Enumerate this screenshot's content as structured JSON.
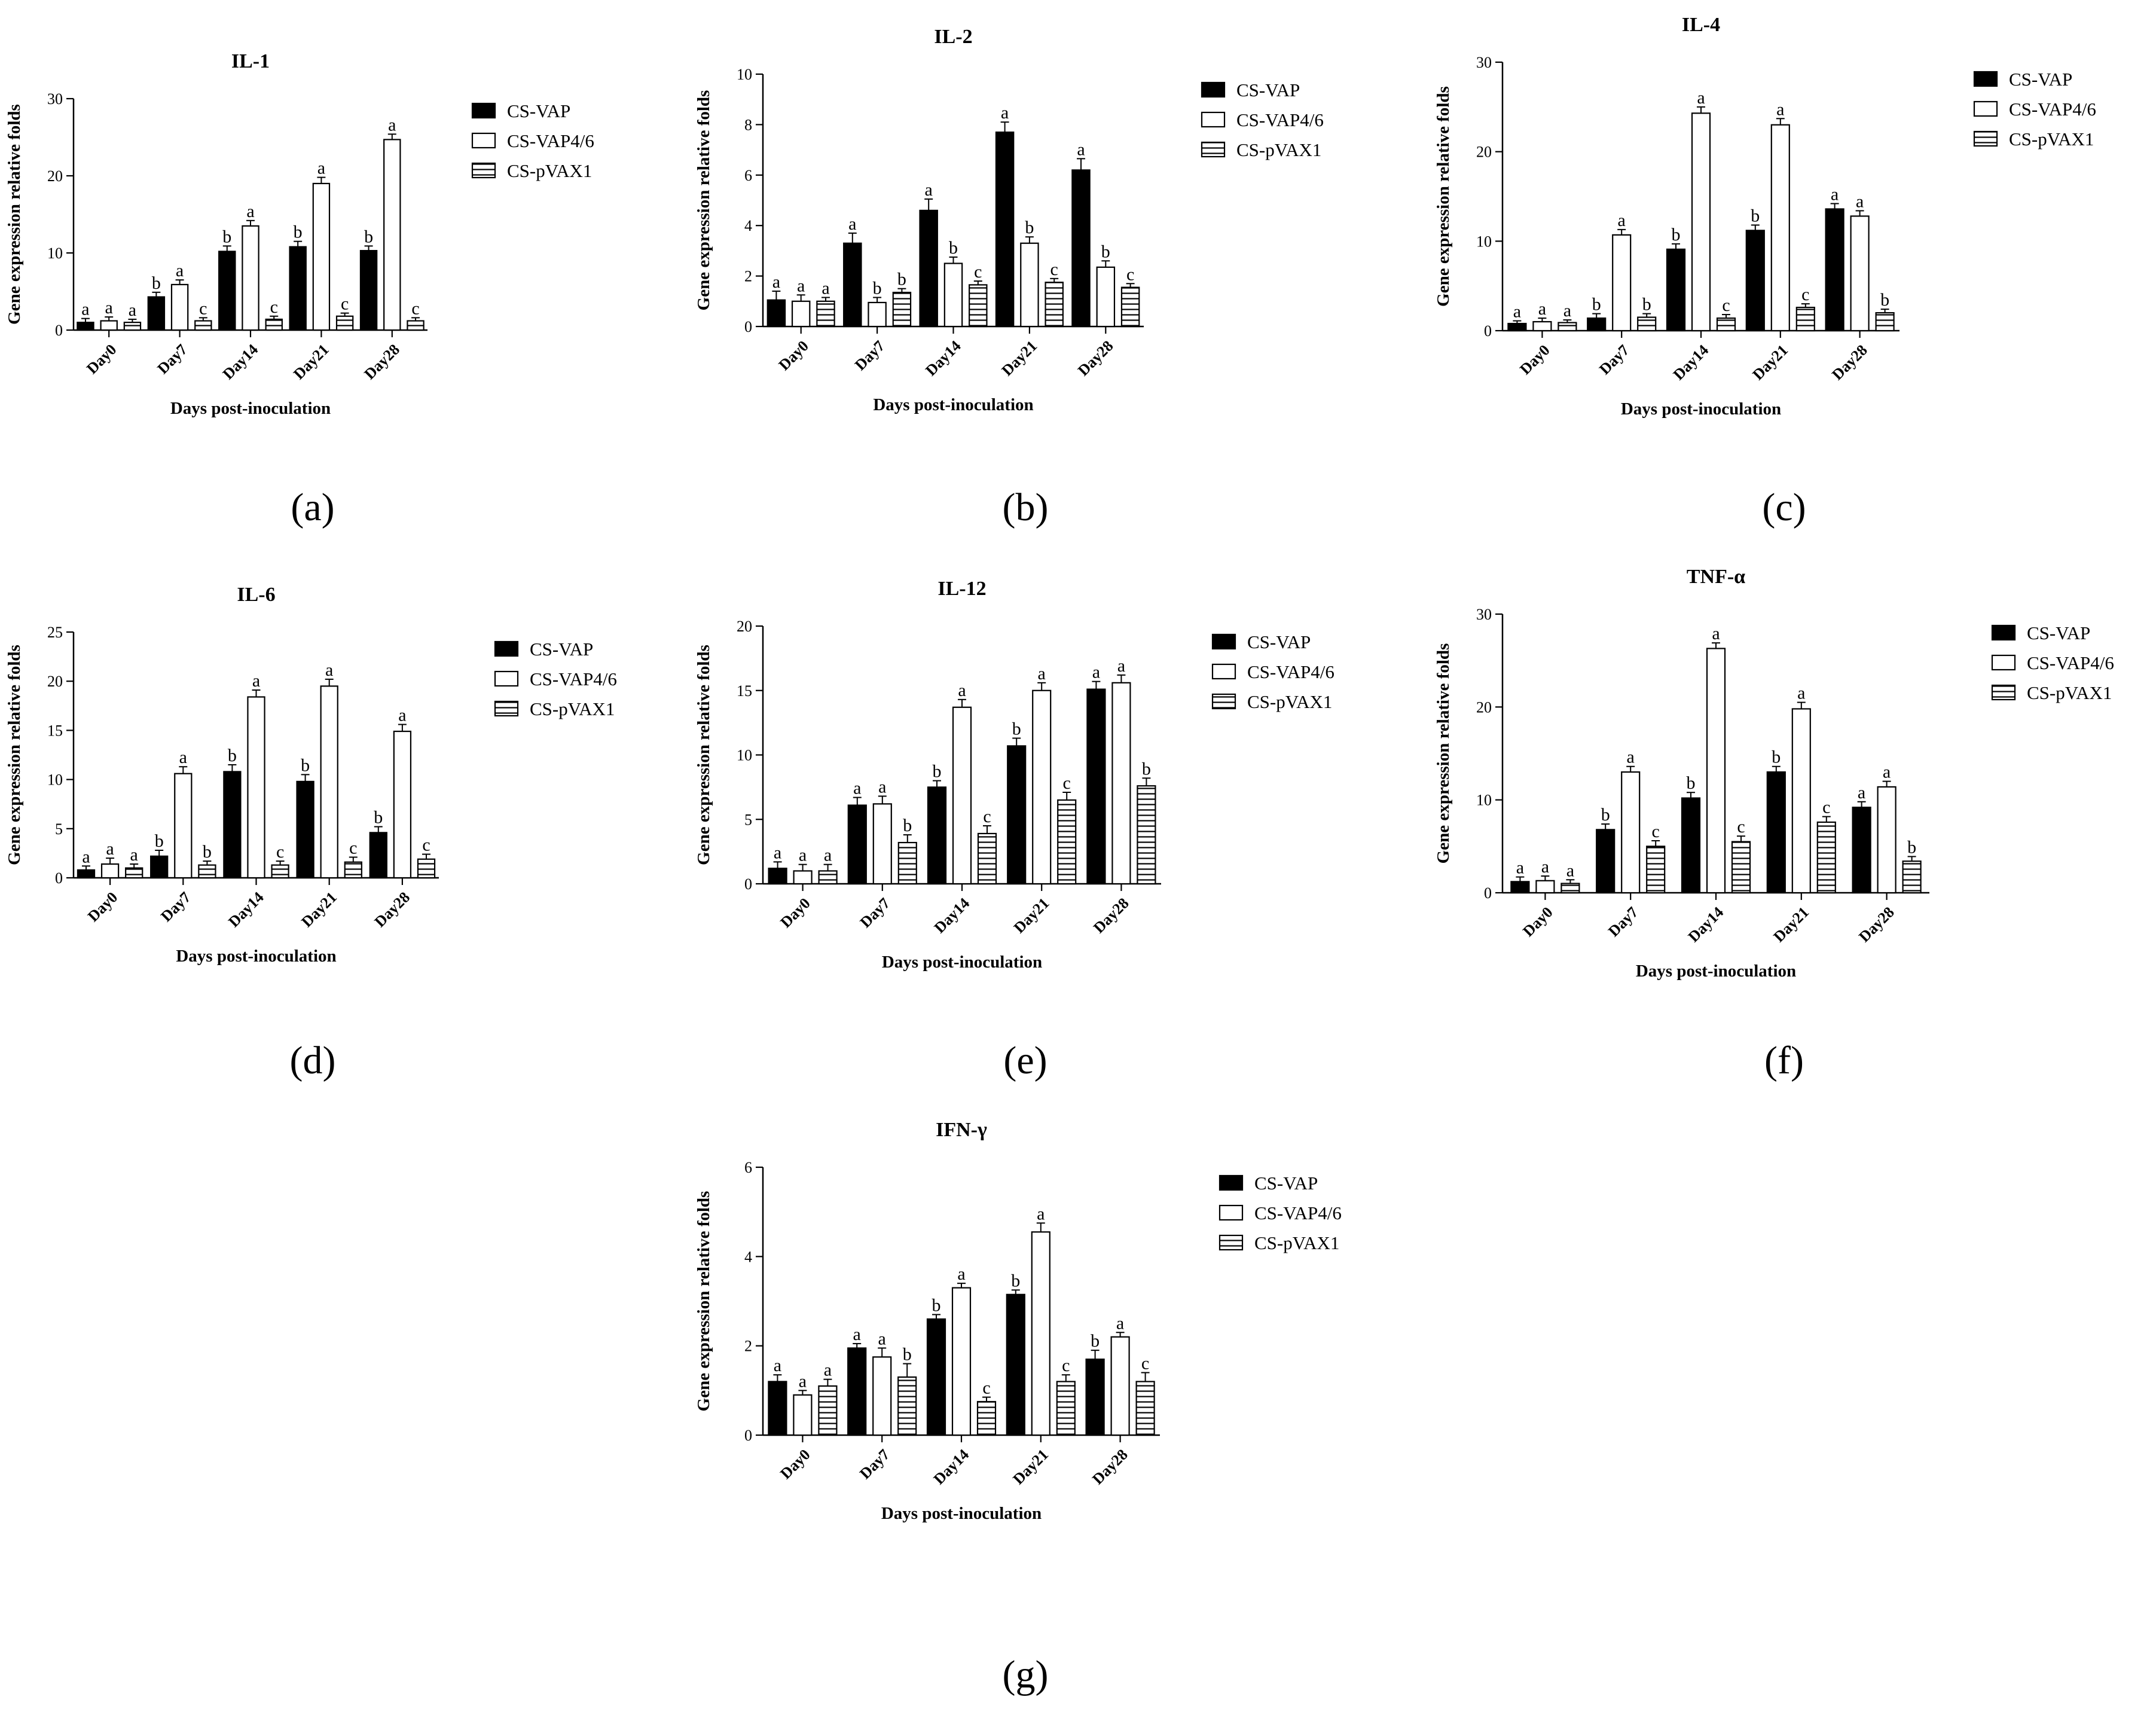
{
  "figure": {
    "legend_entries": [
      "CS-VAP",
      "CS-VAP4/6",
      "CS-pVAX1"
    ],
    "xlabel": "Days post-inoculation",
    "ylabel": "Gene expression relative folds"
  },
  "chart_data": [
    {
      "panel": "a",
      "panel_label": "(a)",
      "type": "bar",
      "title": "IL-1",
      "xlabel": "Days post-inoculation",
      "ylabel": "Gene expression relative folds",
      "categories": [
        "Day0",
        "Day7",
        "Day14",
        "Day21",
        "Day28"
      ],
      "ylim": [
        0,
        30
      ],
      "yticks": [
        0,
        10,
        20,
        30
      ],
      "series": [
        {
          "name": "CS-VAP",
          "fill": "solid",
          "values": [
            1.0,
            4.3,
            10.2,
            10.8,
            10.3
          ],
          "errors": [
            0.5,
            0.6,
            0.7,
            0.7,
            0.6
          ],
          "sig": [
            "a",
            "b",
            "b",
            "b",
            "b"
          ]
        },
        {
          "name": "CS-VAP4/6",
          "fill": "open",
          "values": [
            1.2,
            5.9,
            13.5,
            19.0,
            24.7
          ],
          "errors": [
            0.5,
            0.6,
            0.7,
            0.8,
            0.7
          ],
          "sig": [
            "a",
            "a",
            "a",
            "a",
            "a"
          ]
        },
        {
          "name": "CS-pVAX1",
          "fill": "hatched",
          "values": [
            1.0,
            1.2,
            1.4,
            1.8,
            1.2
          ],
          "errors": [
            0.4,
            0.4,
            0.4,
            0.4,
            0.4
          ],
          "sig": [
            "a",
            "c",
            "c",
            "c",
            "c"
          ]
        }
      ]
    },
    {
      "panel": "b",
      "panel_label": "(b)",
      "type": "bar",
      "title": "IL-2",
      "xlabel": "Days post-inoculation",
      "ylabel": "Gene expression relative folds",
      "categories": [
        "Day0",
        "Day7",
        "Day14",
        "Day21",
        "Day28"
      ],
      "ylim": [
        0,
        10
      ],
      "yticks": [
        0,
        2,
        4,
        6,
        8,
        10
      ],
      "series": [
        {
          "name": "CS-VAP",
          "fill": "solid",
          "values": [
            1.05,
            3.3,
            4.6,
            7.7,
            6.2
          ],
          "errors": [
            0.35,
            0.4,
            0.45,
            0.4,
            0.45
          ],
          "sig": [
            "a",
            "a",
            "a",
            "a",
            "a"
          ]
        },
        {
          "name": "CS-VAP4/6",
          "fill": "open",
          "values": [
            1.0,
            0.95,
            2.5,
            3.3,
            2.35
          ],
          "errors": [
            0.25,
            0.2,
            0.25,
            0.25,
            0.25
          ],
          "sig": [
            "a",
            "b",
            "b",
            "b",
            "b"
          ]
        },
        {
          "name": "CS-pVAX1",
          "fill": "hatched",
          "values": [
            1.0,
            1.35,
            1.65,
            1.75,
            1.55
          ],
          "errors": [
            0.15,
            0.15,
            0.15,
            0.15,
            0.15
          ],
          "sig": [
            "a",
            "b",
            "c",
            "c",
            "c"
          ]
        }
      ]
    },
    {
      "panel": "c",
      "panel_label": "(c)",
      "type": "bar",
      "title": "IL-4",
      "xlabel": "Days post-inoculation",
      "ylabel": "Gene expression relative folds",
      "categories": [
        "Day0",
        "Day7",
        "Day14",
        "Day21",
        "Day28"
      ],
      "ylim": [
        0,
        30
      ],
      "yticks": [
        0,
        10,
        20,
        30
      ],
      "series": [
        {
          "name": "CS-VAP",
          "fill": "solid",
          "values": [
            0.8,
            1.4,
            9.1,
            11.2,
            13.6
          ],
          "errors": [
            0.3,
            0.5,
            0.6,
            0.6,
            0.6
          ],
          "sig": [
            "a",
            "b",
            "b",
            "b",
            "a"
          ]
        },
        {
          "name": "CS-VAP4/6",
          "fill": "open",
          "values": [
            1.0,
            10.7,
            24.3,
            23.0,
            12.8
          ],
          "errors": [
            0.4,
            0.6,
            0.7,
            0.7,
            0.6
          ],
          "sig": [
            "a",
            "a",
            "a",
            "a",
            "a"
          ]
        },
        {
          "name": "CS-pVAX1",
          "fill": "hatched",
          "values": [
            0.9,
            1.5,
            1.4,
            2.6,
            2.0
          ],
          "errors": [
            0.3,
            0.4,
            0.4,
            0.4,
            0.4
          ],
          "sig": [
            "a",
            "b",
            "c",
            "c",
            "b"
          ]
        }
      ]
    },
    {
      "panel": "d",
      "panel_label": "(d)",
      "type": "bar",
      "title": "IL-6",
      "xlabel": "Days post-inoculation",
      "ylabel": "Gene expression relative folds",
      "categories": [
        "Day0",
        "Day7",
        "Day14",
        "Day21",
        "Day28"
      ],
      "ylim": [
        0,
        25
      ],
      "yticks": [
        0,
        5,
        10,
        15,
        20,
        25
      ],
      "series": [
        {
          "name": "CS-VAP",
          "fill": "solid",
          "values": [
            0.8,
            2.2,
            10.8,
            9.8,
            4.6
          ],
          "errors": [
            0.4,
            0.6,
            0.7,
            0.7,
            0.6
          ],
          "sig": [
            "a",
            "b",
            "b",
            "b",
            "b"
          ]
        },
        {
          "name": "CS-VAP4/6",
          "fill": "open",
          "values": [
            1.4,
            10.6,
            18.4,
            19.5,
            14.9
          ],
          "errors": [
            0.6,
            0.7,
            0.7,
            0.7,
            0.7
          ],
          "sig": [
            "a",
            "a",
            "a",
            "a",
            "a"
          ]
        },
        {
          "name": "CS-pVAX1",
          "fill": "hatched",
          "values": [
            1.0,
            1.3,
            1.3,
            1.6,
            1.9
          ],
          "errors": [
            0.4,
            0.4,
            0.4,
            0.5,
            0.5
          ],
          "sig": [
            "a",
            "b",
            "c",
            "c",
            "c"
          ]
        }
      ]
    },
    {
      "panel": "e",
      "panel_label": "(e)",
      "type": "bar",
      "title": "IL-12",
      "xlabel": "Days post-inoculation",
      "ylabel": "Gene expression relative folds",
      "categories": [
        "Day0",
        "Day7",
        "Day14",
        "Day21",
        "Day28"
      ],
      "ylim": [
        0,
        20
      ],
      "yticks": [
        0,
        5,
        10,
        15,
        20
      ],
      "series": [
        {
          "name": "CS-VAP",
          "fill": "solid",
          "values": [
            1.2,
            6.1,
            7.5,
            10.7,
            15.1
          ],
          "errors": [
            0.5,
            0.6,
            0.5,
            0.6,
            0.6
          ],
          "sig": [
            "a",
            "a",
            "b",
            "b",
            "a"
          ]
        },
        {
          "name": "CS-VAP4/6",
          "fill": "open",
          "values": [
            1.0,
            6.2,
            13.7,
            15.0,
            15.6
          ],
          "errors": [
            0.5,
            0.6,
            0.6,
            0.6,
            0.6
          ],
          "sig": [
            "a",
            "a",
            "a",
            "a",
            "a"
          ]
        },
        {
          "name": "CS-pVAX1",
          "fill": "hatched",
          "values": [
            1.0,
            3.2,
            3.9,
            6.5,
            7.6
          ],
          "errors": [
            0.5,
            0.6,
            0.6,
            0.6,
            0.6
          ],
          "sig": [
            "a",
            "b",
            "c",
            "c",
            "b"
          ]
        }
      ]
    },
    {
      "panel": "f",
      "panel_label": "(f)",
      "type": "bar",
      "title": "TNF-α",
      "xlabel": "Days post-inoculation",
      "ylabel": "Gene expression relative folds",
      "categories": [
        "Day0",
        "Day7",
        "Day14",
        "Day21",
        "Day28"
      ],
      "ylim": [
        0,
        30
      ],
      "yticks": [
        0,
        10,
        20,
        30
      ],
      "series": [
        {
          "name": "CS-VAP",
          "fill": "solid",
          "values": [
            1.2,
            6.8,
            10.2,
            13.0,
            9.2
          ],
          "errors": [
            0.5,
            0.6,
            0.6,
            0.6,
            0.6
          ],
          "sig": [
            "a",
            "b",
            "b",
            "b",
            "a"
          ]
        },
        {
          "name": "CS-VAP4/6",
          "fill": "open",
          "values": [
            1.3,
            13.0,
            26.3,
            19.8,
            11.4
          ],
          "errors": [
            0.5,
            0.6,
            0.6,
            0.7,
            0.6
          ],
          "sig": [
            "a",
            "a",
            "a",
            "a",
            "a"
          ]
        },
        {
          "name": "CS-pVAX1",
          "fill": "hatched",
          "values": [
            1.0,
            5.0,
            5.5,
            7.6,
            3.4
          ],
          "errors": [
            0.4,
            0.6,
            0.6,
            0.6,
            0.5
          ],
          "sig": [
            "a",
            "c",
            "c",
            "c",
            "b"
          ]
        }
      ]
    },
    {
      "panel": "g",
      "panel_label": "(g)",
      "type": "bar",
      "title": "IFN-γ",
      "xlabel": "Days post-inoculation",
      "ylabel": "Gene expression relative folds",
      "categories": [
        "Day0",
        "Day7",
        "Day14",
        "Day21",
        "Day28"
      ],
      "ylim": [
        0,
        6
      ],
      "yticks": [
        0,
        2,
        4,
        6
      ],
      "series": [
        {
          "name": "CS-VAP",
          "fill": "solid",
          "values": [
            1.2,
            1.95,
            2.6,
            3.15,
            1.7
          ],
          "errors": [
            0.15,
            0.1,
            0.1,
            0.1,
            0.2
          ],
          "sig": [
            "a",
            "a",
            "b",
            "b",
            "b"
          ]
        },
        {
          "name": "CS-VAP4/6",
          "fill": "open",
          "values": [
            0.9,
            1.75,
            3.3,
            4.55,
            2.2
          ],
          "errors": [
            0.1,
            0.2,
            0.1,
            0.2,
            0.1
          ],
          "sig": [
            "a",
            "a",
            "a",
            "a",
            "a"
          ]
        },
        {
          "name": "CS-pVAX1",
          "fill": "hatched",
          "values": [
            1.1,
            1.3,
            0.75,
            1.2,
            1.2
          ],
          "errors": [
            0.15,
            0.3,
            0.1,
            0.15,
            0.2
          ],
          "sig": [
            "a",
            "b",
            "c",
            "c",
            "c"
          ]
        }
      ]
    }
  ]
}
